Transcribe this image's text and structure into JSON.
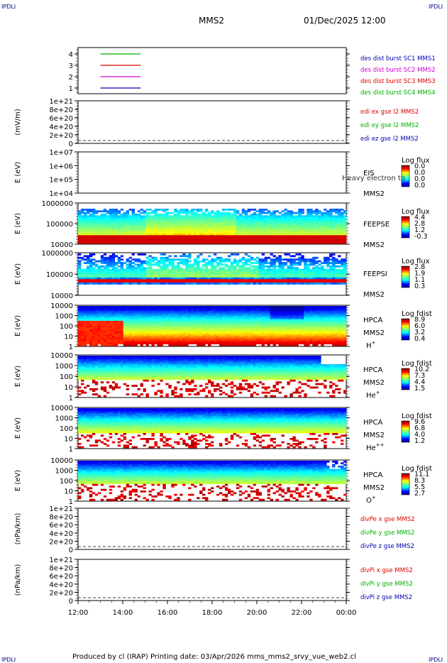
{
  "header": {
    "corner_label": "IPDLI",
    "title": "MMS2",
    "date": "01/Dec/2025 12:00"
  },
  "footer": {
    "text": "Produced by cl (IRAP)   Printing date: 03/Apr/2026   mms_mms2_srvy_vue_web2.cl"
  },
  "x_axis": {
    "ticks": [
      "12:00",
      "14:00",
      "16:00",
      "18:00",
      "20:00",
      "22:00",
      "00:00"
    ]
  },
  "colors": {
    "red": "#e00000",
    "green": "#00b000",
    "blue": "#0000b0",
    "magenta": "#d000d0"
  },
  "chart_data": [
    {
      "type": "line",
      "id": "sc-bars",
      "yticks": [
        "4",
        "3",
        "2",
        "1"
      ],
      "legend": [
        {
          "label": "des dist burst SC1 MMS1",
          "color": "#0000b0"
        },
        {
          "label": "des dist burst SC2 MMS2",
          "color": "#d000d0"
        },
        {
          "label": "des dist burst SC3 MMS3",
          "color": "#e00000"
        },
        {
          "label": "des dist burst SC4 MMS4",
          "color": "#00b000"
        }
      ],
      "series": [
        {
          "level": 4,
          "start_hour": 13.0,
          "end_hour": 14.8,
          "color": "#00b000"
        },
        {
          "level": 3,
          "start_hour": 13.0,
          "end_hour": 14.8,
          "color": "#e00000"
        },
        {
          "level": 2,
          "start_hour": 13.0,
          "end_hour": 14.8,
          "color": "#d000d0"
        },
        {
          "level": 1,
          "start_hour": 13.0,
          "end_hour": 14.8,
          "color": "#0000b0"
        }
      ]
    },
    {
      "type": "line",
      "id": "edi",
      "ylabel": "(mV/m)",
      "yticks": [
        "1e+21",
        "8e+20",
        "6e+20",
        "4e+20",
        "2e+20",
        "0"
      ],
      "legend": [
        {
          "label": "edi ex gse l2 MMS2",
          "color": "#e00000"
        },
        {
          "label": "edi ey gse l2 MMS2",
          "color": "#00b000"
        },
        {
          "label": "edi ez gse l2 MMS2",
          "color": "#0000b0"
        }
      ]
    },
    {
      "type": "heatmap",
      "id": "eis",
      "ylabel": "E (eV)",
      "yticks": [
        "1e+07",
        "1e+06",
        "1e+05",
        "1e+04"
      ],
      "instrument": "EIS",
      "spacecraft": "MMS2",
      "note": "Heavy electron to",
      "cbar_title": "Log flux",
      "cbar_ticks": [
        "0.0",
        "0.0",
        "0.0",
        "0.0"
      ]
    },
    {
      "type": "heatmap",
      "id": "feepse",
      "ylabel": "E (eV)",
      "yticks": [
        "1000000",
        "100000",
        "10000"
      ],
      "instrument": "FEEPSE",
      "spacecraft": "MMS2",
      "cbar_title": "Log flux",
      "cbar_ticks": [
        "4.4",
        "2.8",
        "1.2",
        "-0.3"
      ]
    },
    {
      "type": "heatmap",
      "id": "feepsi",
      "ylabel": "E (eV)",
      "yticks": [
        "1000000",
        "100000",
        "10000"
      ],
      "instrument": "FEEPSI",
      "spacecraft": "MMS2",
      "cbar_title": "Log flux",
      "cbar_ticks": [
        "2.8",
        "1.9",
        "1.1",
        "0.3"
      ]
    },
    {
      "type": "heatmap",
      "id": "hpca-h",
      "ylabel": "E (eV)",
      "yticks": [
        "10000",
        "1000",
        "100",
        "10",
        "1"
      ],
      "instrument": "HPCA",
      "spacecraft": "MMS2",
      "species": "H",
      "charge": "+",
      "cbar_title": "Log fdist",
      "cbar_ticks": [
        "8.9",
        "6.0",
        "3.2",
        "0.4"
      ]
    },
    {
      "type": "heatmap",
      "id": "hpca-he",
      "ylabel": "E (eV)",
      "yticks": [
        "10000",
        "1000",
        "100",
        "10",
        "1"
      ],
      "instrument": "HPCA",
      "spacecraft": "MMS2",
      "species": "He",
      "charge": "+",
      "cbar_title": "Log fdist",
      "cbar_ticks": [
        "10.2",
        "7.3",
        "4.4",
        "1.5"
      ]
    },
    {
      "type": "heatmap",
      "id": "hpca-he2",
      "ylabel": "E (eV)",
      "yticks": [
        "10000",
        "1000",
        "100",
        "10",
        "1"
      ],
      "instrument": "HPCA",
      "spacecraft": "MMS2",
      "species": "He",
      "charge": "++",
      "cbar_title": "Log fdist",
      "cbar_ticks": [
        "9.6",
        "6.8",
        "4.0",
        "1.2"
      ]
    },
    {
      "type": "heatmap",
      "id": "hpca-o",
      "ylabel": "E (eV)",
      "yticks": [
        "10000",
        "1000",
        "100",
        "10",
        "1"
      ],
      "instrument": "HPCA",
      "spacecraft": "MMS2",
      "species": "O",
      "charge": "+",
      "cbar_title": "Log fdist",
      "cbar_ticks": [
        "11.1",
        "8.3",
        "5.5",
        "2.7"
      ]
    },
    {
      "type": "line",
      "id": "divpe",
      "ylabel": "(nPa/km)",
      "yticks": [
        "1e+21",
        "8e+20",
        "6e+20",
        "4e+20",
        "2e+20",
        "0"
      ],
      "legend": [
        {
          "label": "divPe x gse MMS2",
          "color": "#e00000"
        },
        {
          "label": "divPe y gse MMS2",
          "color": "#00b000"
        },
        {
          "label": "divPe z gse MMS2",
          "color": "#0000b0"
        }
      ]
    },
    {
      "type": "line",
      "id": "divpi",
      "ylabel": "(nPa/km)",
      "yticks": [
        "1e+21",
        "8e+20",
        "6e+20",
        "4e+20",
        "2e+20",
        "0"
      ],
      "legend": [
        {
          "label": "divPi x gse MMS2",
          "color": "#e00000"
        },
        {
          "label": "divPi y gse MMS2",
          "color": "#00b000"
        },
        {
          "label": "divPi z gse MMS2",
          "color": "#0000b0"
        }
      ]
    }
  ]
}
